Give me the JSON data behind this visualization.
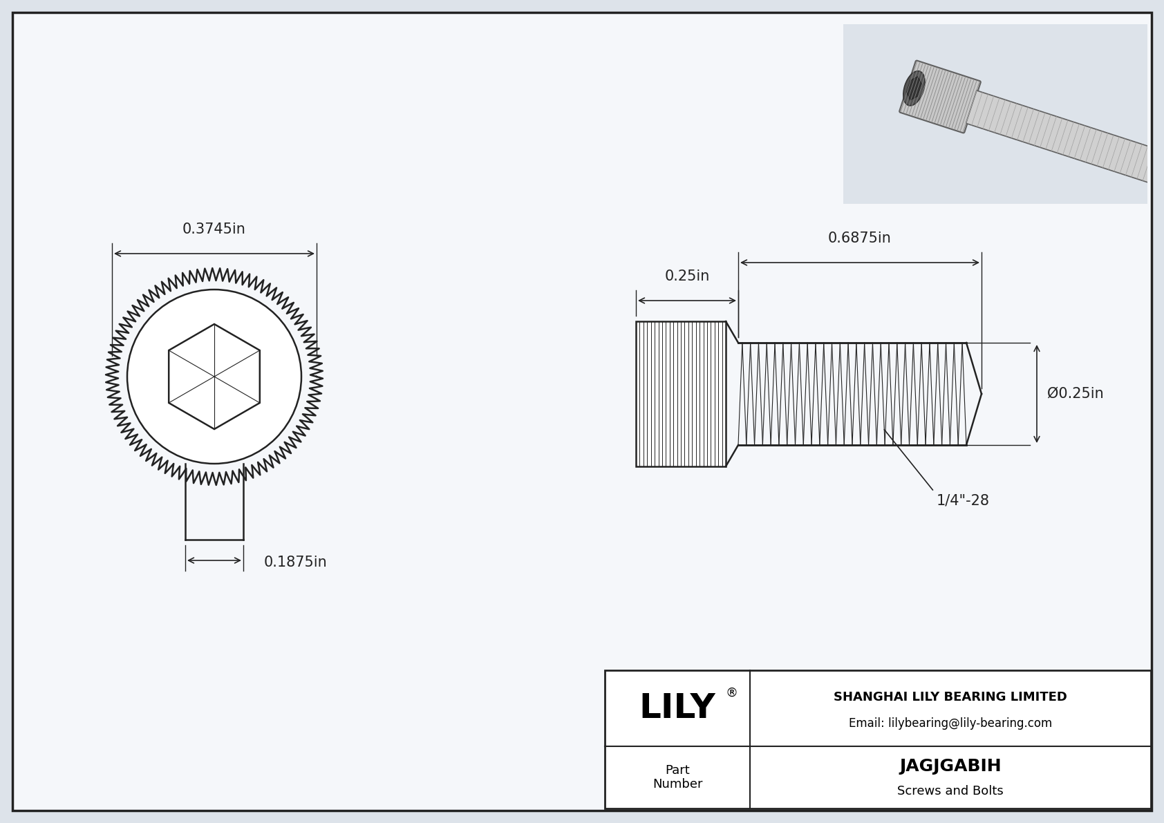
{
  "bg_color": "#dde3ea",
  "drawing_bg": "#f5f7fa",
  "border_color": "#222222",
  "line_color": "#222222",
  "title": "JAGJGABIH",
  "subtitle": "Screws and Bolts",
  "company": "SHANGHAI LILY BEARING LIMITED",
  "email": "Email: lilybearing@lily-bearing.com",
  "part_label": "Part\nNumber",
  "lily_text": "LILY",
  "registered": "®",
  "dim_head_diameter": "0.3745in",
  "dim_head_depth": "0.1875in",
  "dim_shank_length": "0.25in",
  "dim_thread_length": "0.6875in",
  "dim_thread_diameter": "Ø0.25in",
  "dim_thread_label": "1/4\"-28"
}
